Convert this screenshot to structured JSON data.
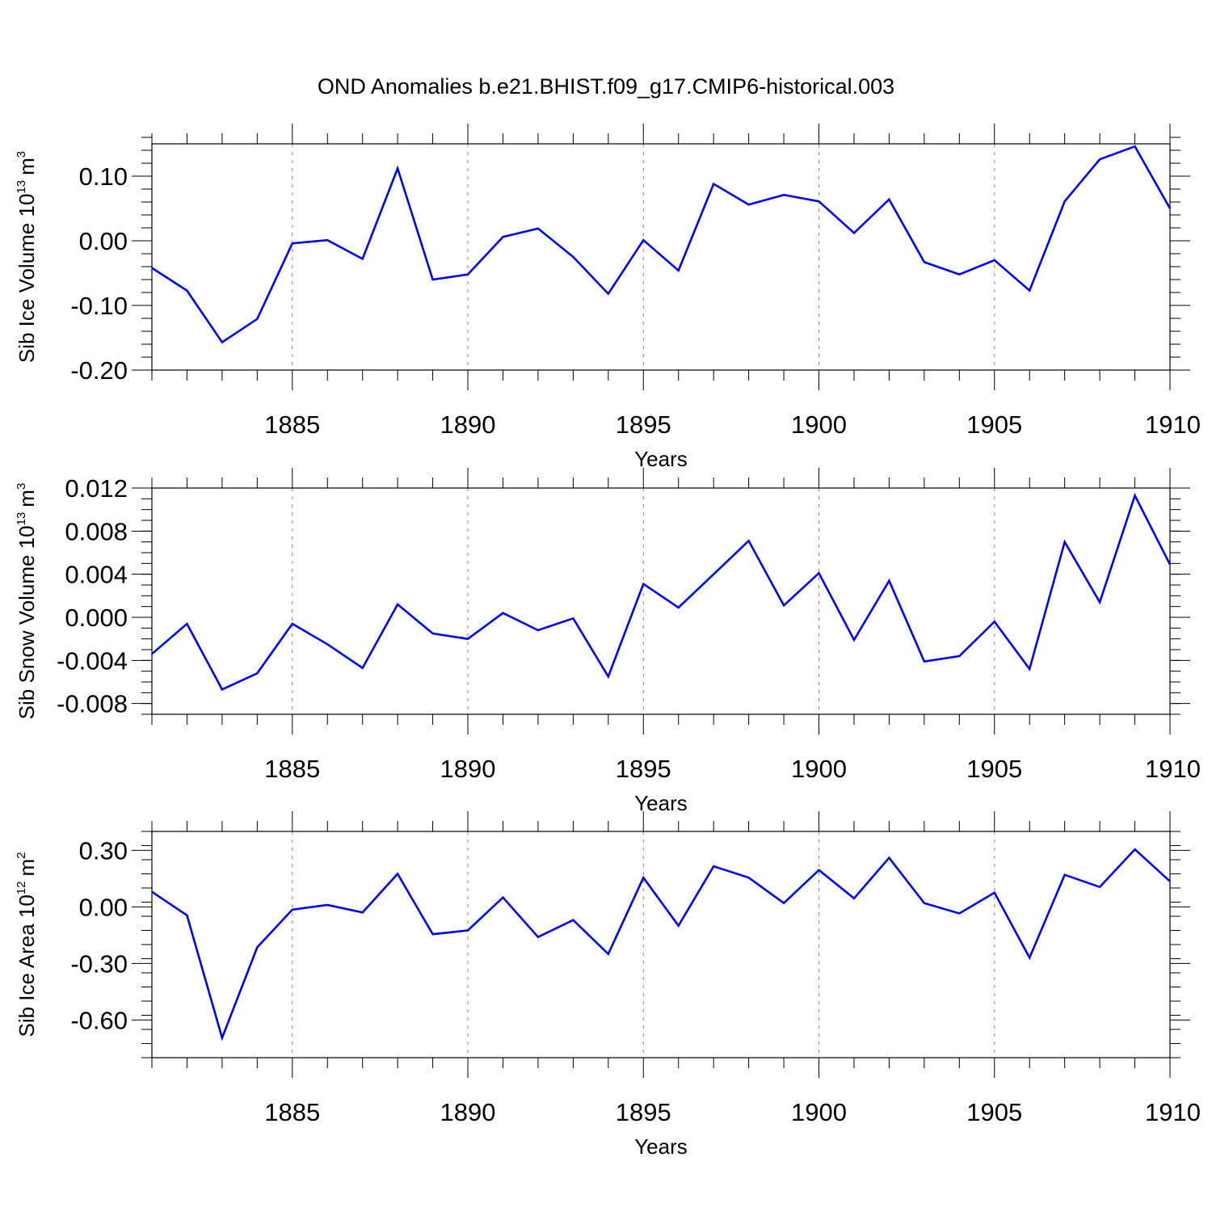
{
  "figure": {
    "title": "OND Anomalies b.e21.BHIST.f09_g17.CMIP6-historical.003"
  },
  "chart_data": [
    {
      "type": "line",
      "title": "",
      "xlabel": "Years",
      "ylabel_text": "Sib Ice Volume 10",
      "ylabel_exp": "13",
      "ylabel_unit": "m",
      "ylabel_unit_exp": "3",
      "xlim": [
        1881,
        1910
      ],
      "ylim": [
        -0.2,
        0.15
      ],
      "xticks": [
        1885,
        1890,
        1895,
        1900,
        1905,
        1910
      ],
      "xtick_labels": [
        "1885",
        "1890",
        "1895",
        "1900",
        "1905",
        "1910"
      ],
      "yticks": [
        -0.2,
        -0.1,
        0.0,
        0.1
      ],
      "ytick_labels": [
        "-0.20",
        "-0.10",
        "0.00",
        "0.10"
      ],
      "yminor_step": 0.02,
      "grid": "x-dashed",
      "line_color": "#0000ff",
      "series": [
        {
          "x": [
            1881,
            1882,
            1883,
            1884,
            1885,
            1886,
            1887,
            1888,
            1889,
            1890,
            1891,
            1892,
            1893,
            1894,
            1895,
            1896,
            1897,
            1898,
            1899,
            1900,
            1901,
            1902,
            1903,
            1904,
            1905,
            1906,
            1907,
            1908,
            1909,
            1910
          ],
          "values": [
            -0.042,
            -0.077,
            -0.157,
            -0.121,
            -0.004,
            0.001,
            -0.028,
            0.112,
            -0.06,
            -0.052,
            0.006,
            0.019,
            -0.025,
            -0.082,
            0.001,
            -0.046,
            0.088,
            0.056,
            0.071,
            0.061,
            0.012,
            0.064,
            -0.033,
            -0.052,
            -0.03,
            -0.077,
            0.061,
            0.126,
            0.146,
            0.05
          ]
        }
      ]
    },
    {
      "type": "line",
      "title": "",
      "xlabel": "Years",
      "ylabel_text": "Sib Snow Volume 10",
      "ylabel_exp": "13",
      "ylabel_unit": "m",
      "ylabel_unit_exp": "3",
      "xlim": [
        1881,
        1910
      ],
      "ylim": [
        -0.009,
        0.012
      ],
      "xticks": [
        1885,
        1890,
        1895,
        1900,
        1905,
        1910
      ],
      "xtick_labels": [
        "1885",
        "1890",
        "1895",
        "1900",
        "1905",
        "1910"
      ],
      "yticks": [
        -0.008,
        -0.004,
        0.0,
        0.004,
        0.008,
        0.012
      ],
      "ytick_labels": [
        "-0.008",
        "-0.004",
        "0.000",
        "0.004",
        "0.008",
        "0.012"
      ],
      "yminor_step": 0.001,
      "grid": "x-dashed",
      "line_color": "#0000ff",
      "series": [
        {
          "x": [
            1881,
            1882,
            1883,
            1884,
            1885,
            1886,
            1887,
            1888,
            1889,
            1890,
            1891,
            1892,
            1893,
            1894,
            1895,
            1896,
            1897,
            1898,
            1899,
            1900,
            1901,
            1902,
            1903,
            1904,
            1905,
            1906,
            1907,
            1908,
            1909,
            1910
          ],
          "values": [
            -0.0034,
            -0.0006,
            -0.0067,
            -0.0052,
            -0.0006,
            -0.0025,
            -0.0047,
            0.0012,
            -0.0015,
            -0.002,
            0.0004,
            -0.0012,
            -0.0001,
            -0.0055,
            0.0031,
            0.0009,
            0.004,
            0.0071,
            0.0011,
            0.0041,
            -0.0021,
            0.0034,
            -0.0041,
            -0.0036,
            -0.0004,
            -0.0048,
            0.007,
            0.0014,
            0.0113,
            0.0049
          ]
        }
      ]
    },
    {
      "type": "line",
      "title": "",
      "xlabel": "Years",
      "ylabel_text": "Sib Ice Area 10",
      "ylabel_exp": "12",
      "ylabel_unit": "m",
      "ylabel_unit_exp": "2",
      "xlim": [
        1881,
        1910
      ],
      "ylim": [
        -0.8,
        0.4
      ],
      "xticks": [
        1885,
        1890,
        1895,
        1900,
        1905,
        1910
      ],
      "xtick_labels": [
        "1885",
        "1890",
        "1895",
        "1900",
        "1905",
        "1910"
      ],
      "yticks": [
        -0.6,
        -0.3,
        0.0,
        0.3
      ],
      "ytick_labels": [
        "-0.60",
        "-0.30",
        "0.00",
        "0.30"
      ],
      "yminor_step": 0.075,
      "grid": "x-dashed",
      "line_color": "#0000ff",
      "series": [
        {
          "x": [
            1881,
            1882,
            1883,
            1884,
            1885,
            1886,
            1887,
            1888,
            1889,
            1890,
            1891,
            1892,
            1893,
            1894,
            1895,
            1896,
            1897,
            1898,
            1899,
            1900,
            1901,
            1902,
            1903,
            1904,
            1905,
            1906,
            1907,
            1908,
            1909,
            1910
          ],
          "values": [
            0.08,
            -0.045,
            -0.695,
            -0.215,
            -0.015,
            0.01,
            -0.03,
            0.175,
            -0.145,
            -0.125,
            0.05,
            -0.16,
            -0.07,
            -0.25,
            0.155,
            -0.1,
            0.215,
            0.155,
            0.02,
            0.195,
            0.045,
            0.26,
            0.02,
            -0.035,
            0.075,
            -0.27,
            0.17,
            0.105,
            0.305,
            0.135
          ]
        }
      ]
    }
  ]
}
